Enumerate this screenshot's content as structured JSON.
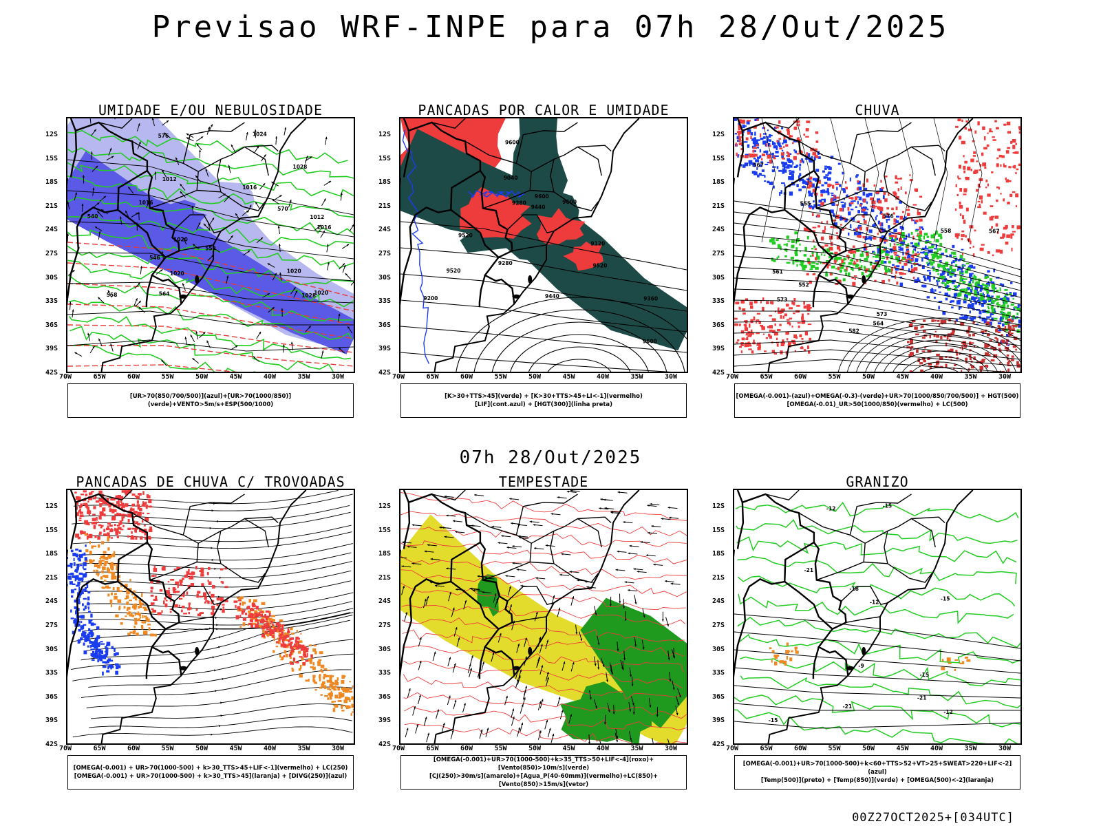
{
  "title": "Previsao WRF-INPE  para 07h 28/Out/2025",
  "subtitle": "07h 28/Out/2025",
  "footer": "00Z27OCT2025+[034UTC]",
  "lat_labels": [
    "12S",
    "15S",
    "18S",
    "21S",
    "24S",
    "27S",
    "30S",
    "33S",
    "36S",
    "39S",
    "42S"
  ],
  "lon_labels": [
    "70W",
    "65W",
    "60W",
    "55W",
    "50W",
    "45W",
    "40W",
    "35W",
    "30W"
  ],
  "panels": [
    {
      "title": "UMIDADE E/OU NEBULOSIDADE",
      "legend": [
        "[UR>70(850/700/500)](azul)+[UR>70(1000/850)](verde)+VENTO>5m/s+ESP(500/1000)"
      ],
      "labels": [
        "1012",
        "1012",
        "1016",
        "1016",
        "1020",
        "1020",
        "1020",
        "1024",
        "1028",
        "1028",
        "1016",
        "1020",
        "570",
        "564",
        "558",
        "552",
        "546",
        "540",
        "576"
      ]
    },
    {
      "title": "PANCADAS POR CALOR E UMIDADE",
      "legend": [
        "[K>30+TTS>45](verde) + [K>30+TTS>45+LI<-1](vermelho)",
        "[LIF](cont.azul) + [HGT(300)](linha preta)"
      ],
      "labels": [
        "9600",
        "9520",
        "9600",
        "9600",
        "9520",
        "9440",
        "9360",
        "9280",
        "9280",
        "9200",
        "9120",
        "9040",
        "9520",
        "9440",
        "9600"
      ]
    },
    {
      "title": "CHUVA",
      "legend": [
        "[OMEGA(-0.001)-(azul)+OMEGA(-0.3)-(verde)+UR>70(1000/850/700/500)] + HGT(500)",
        "[OMEGA(-0.01)_UR>50(1000/850)(vermelho) + LC(500)"
      ],
      "labels": [
        "582",
        "573",
        "576",
        "567",
        "567",
        "573",
        "564",
        "561",
        "558",
        "555",
        "552"
      ]
    },
    {
      "title": "PANCADAS DE CHUVA C/ TROVOADAS",
      "legend": [
        "[OMEGA(-0.001) + UR>70(1000-500) + k>30_TTS>45+LIF<-1](vermelho) + LC(250)",
        "[OMEGA(-0.001) + UR>70(1000-500) + k>30_TTS>45](laranja) + [DIVG(250)](azul)"
      ],
      "labels": []
    },
    {
      "title": "TEMPESTADE",
      "legend": [
        "[OMEGA(-0.001)+UR>70(1000-500)+k>35_TTS>50+LIF<-4](roxo)+[Vento(850)>10m/s](verde)",
        "[CJ(250)>30m/s](amarelo)+[Agua_P(40-60mm)](vermelho)+LC(850)+[Vento(850)>15m/s](vetor)"
      ],
      "labels": []
    },
    {
      "title": "GRANIZO",
      "legend": [
        "[OMEGA(-0.001)+UR>70(1000-500)+k<60+TTS>52+VT>25+SWEAT>220+LIF<-2](azul)",
        "[Temp(500)](preto) + [Temp(850)](verde) + [OMEGA(500)<-2](laranja)"
      ],
      "labels": [
        "-9",
        "-12",
        "-12",
        "-15",
        "-15",
        "-15",
        "-15",
        "-12",
        "-21",
        "-21",
        "-21",
        "-18"
      ]
    }
  ],
  "colors": {
    "blue_light": "#b8b8f0",
    "blue": "#5a5ae6",
    "green": "#22cc22",
    "red": "#ee3b3b",
    "dark_teal": "#1d4a46",
    "orange": "#ee8822",
    "yellow": "#e4dc2c",
    "dark_green": "#1f9a1f",
    "pure_blue": "#1a3cf0"
  }
}
